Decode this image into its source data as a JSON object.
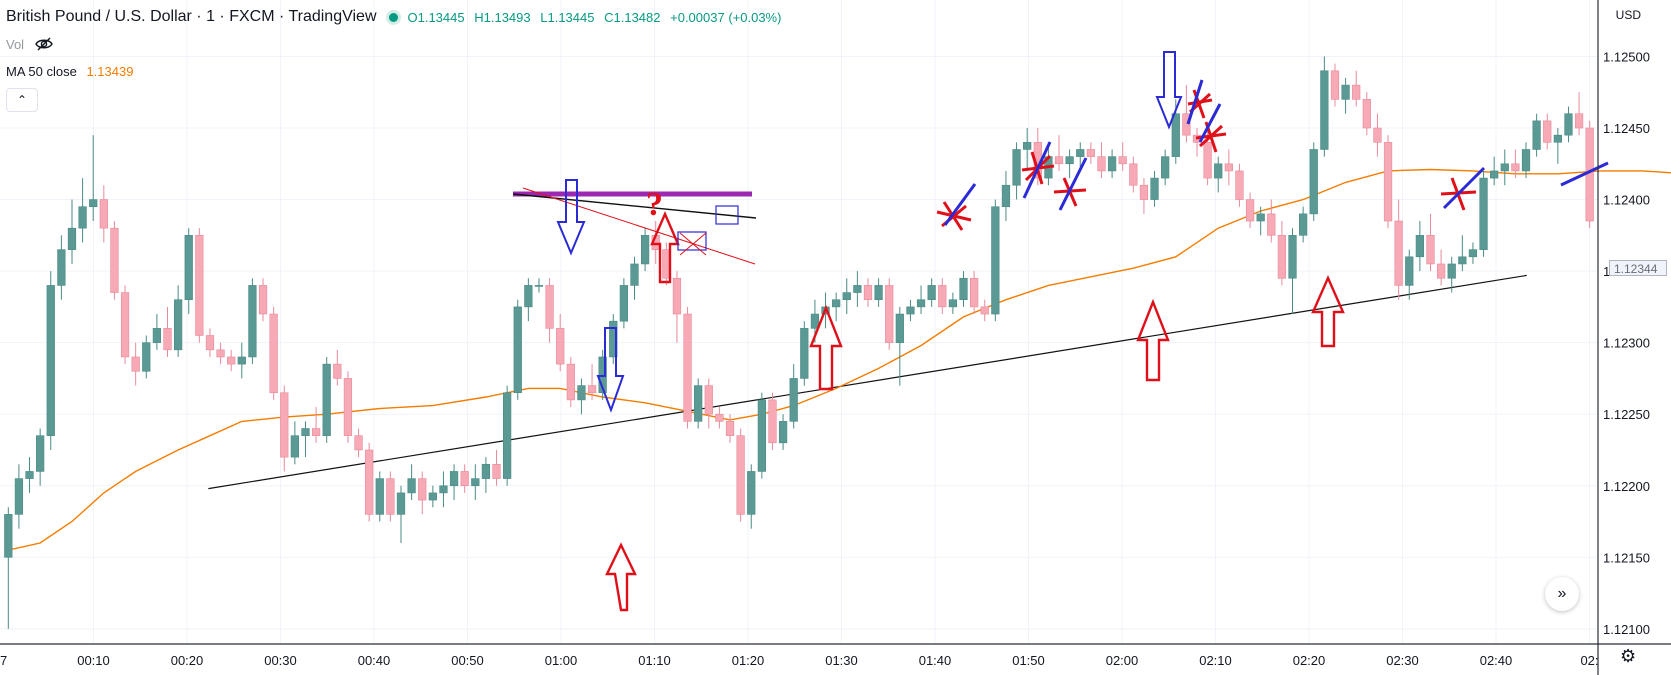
{
  "header": {
    "title": "British Pound / U.S. Dollar · 1 · FXCM · TradingView",
    "ohlc": {
      "open": "O1.13445",
      "high": "H1.13493",
      "low": "L1.13445",
      "close": "C1.13482",
      "change": "+0.00037 (+0.03%)"
    },
    "vol_label": "Vol",
    "ma_label": "MA 50 close",
    "ma_value": "1.13439",
    "collapse_icon": "chevron-up-icon"
  },
  "price_axis": {
    "currency": "USD",
    "current_price_tag": "1.12344"
  },
  "colors": {
    "up": "#5b9a94",
    "down": "#f7a9b5",
    "ma": "#f57c00",
    "drawing_red": "#e0101a",
    "drawing_blue": "#2a2ad6",
    "drawing_purple": "#9c27b0",
    "trendline": "#111111"
  },
  "chart_data": {
    "type": "candlestick",
    "y_ticks": [
      "1.12500",
      "1.12450",
      "1.12400",
      "1.12350",
      "1.12300",
      "1.12250",
      "1.12200",
      "1.12150",
      "1.12100"
    ],
    "ylim": [
      1.12095,
      1.12515
    ],
    "x_tick_labels": [
      "7",
      "00:10",
      "00:20",
      "00:30",
      "00:40",
      "00:50",
      "01:00",
      "01:10",
      "01:20",
      "01:30",
      "01:40",
      "01:50",
      "02:00",
      "02:10",
      "02:20",
      "02:30",
      "02:40",
      "02:"
    ],
    "x_tick_minutes": [
      0,
      10,
      20,
      30,
      40,
      50,
      60,
      70,
      80,
      90,
      100,
      110,
      120,
      130,
      140,
      150,
      160,
      170
    ],
    "candles": [
      [
        1.1215,
        1.12185,
        1.121,
        1.1218
      ],
      [
        1.1218,
        1.12215,
        1.1217,
        1.12205
      ],
      [
        1.12205,
        1.1222,
        1.12195,
        1.1221
      ],
      [
        1.1221,
        1.1224,
        1.122,
        1.12235
      ],
      [
        1.12235,
        1.1235,
        1.12225,
        1.1234
      ],
      [
        1.1234,
        1.12375,
        1.1233,
        1.12365
      ],
      [
        1.12365,
        1.124,
        1.12355,
        1.1238
      ],
      [
        1.1238,
        1.12415,
        1.1237,
        1.12395
      ],
      [
        1.12395,
        1.12445,
        1.12385,
        1.124
      ],
      [
        1.124,
        1.1241,
        1.1237,
        1.1238
      ],
      [
        1.1238,
        1.12385,
        1.1233,
        1.12335
      ],
      [
        1.12335,
        1.1234,
        1.12285,
        1.1229
      ],
      [
        1.1229,
        1.123,
        1.1227,
        1.1228
      ],
      [
        1.1228,
        1.12305,
        1.12275,
        1.123
      ],
      [
        1.123,
        1.1232,
        1.12295,
        1.1231
      ],
      [
        1.1231,
        1.12325,
        1.1229,
        1.12295
      ],
      [
        1.12295,
        1.1234,
        1.1229,
        1.1233
      ],
      [
        1.1233,
        1.1238,
        1.1232,
        1.12375
      ],
      [
        1.12375,
        1.1238,
        1.123,
        1.12305
      ],
      [
        1.12305,
        1.1231,
        1.1229,
        1.12295
      ],
      [
        1.12295,
        1.123,
        1.12285,
        1.1229
      ],
      [
        1.1229,
        1.12295,
        1.1228,
        1.12285
      ],
      [
        1.12285,
        1.123,
        1.12275,
        1.1229
      ],
      [
        1.1229,
        1.12345,
        1.12285,
        1.1234
      ],
      [
        1.1234,
        1.12345,
        1.12315,
        1.1232
      ],
      [
        1.1232,
        1.12325,
        1.1226,
        1.12265
      ],
      [
        1.12265,
        1.1227,
        1.1221,
        1.1222
      ],
      [
        1.1222,
        1.12245,
        1.12215,
        1.12235
      ],
      [
        1.12235,
        1.12245,
        1.1222,
        1.1224
      ],
      [
        1.1224,
        1.12255,
        1.1223,
        1.12235
      ],
      [
        1.12235,
        1.1229,
        1.1223,
        1.12285
      ],
      [
        1.12285,
        1.12295,
        1.1227,
        1.12275
      ],
      [
        1.12275,
        1.1228,
        1.1223,
        1.12235
      ],
      [
        1.12235,
        1.1224,
        1.1222,
        1.12225
      ],
      [
        1.12225,
        1.1223,
        1.12175,
        1.1218
      ],
      [
        1.1218,
        1.1221,
        1.12175,
        1.12205
      ],
      [
        1.12205,
        1.1221,
        1.12175,
        1.1218
      ],
      [
        1.1218,
        1.122,
        1.1216,
        1.12195
      ],
      [
        1.12195,
        1.12215,
        1.1219,
        1.12205
      ],
      [
        1.12205,
        1.1221,
        1.1218,
        1.1219
      ],
      [
        1.1219,
        1.122,
        1.12185,
        1.12195
      ],
      [
        1.12195,
        1.1221,
        1.12185,
        1.122
      ],
      [
        1.122,
        1.12215,
        1.1219,
        1.1221
      ],
      [
        1.1221,
        1.12215,
        1.12195,
        1.122
      ],
      [
        1.122,
        1.12215,
        1.1219,
        1.12205
      ],
      [
        1.12205,
        1.1222,
        1.12195,
        1.12215
      ],
      [
        1.12215,
        1.12225,
        1.122,
        1.12205
      ],
      [
        1.12205,
        1.1227,
        1.122,
        1.12265
      ],
      [
        1.12265,
        1.1233,
        1.1226,
        1.12325
      ],
      [
        1.12325,
        1.12345,
        1.12315,
        1.1234
      ],
      [
        1.1234,
        1.12345,
        1.12335,
        1.1234
      ],
      [
        1.1234,
        1.12345,
        1.123,
        1.1231
      ],
      [
        1.1231,
        1.1232,
        1.1228,
        1.12285
      ],
      [
        1.12285,
        1.1229,
        1.12255,
        1.1226
      ],
      [
        1.1226,
        1.12275,
        1.1225,
        1.1227
      ],
      [
        1.1227,
        1.12285,
        1.1226,
        1.12265
      ],
      [
        1.12265,
        1.12295,
        1.1226,
        1.1229
      ],
      [
        1.1229,
        1.1232,
        1.12285,
        1.12315
      ],
      [
        1.12315,
        1.12345,
        1.1231,
        1.1234
      ],
      [
        1.1234,
        1.1236,
        1.1233,
        1.12355
      ],
      [
        1.12355,
        1.1238,
        1.1235,
        1.12375
      ],
      [
        1.12375,
        1.12385,
        1.12355,
        1.12365
      ],
      [
        1.12365,
        1.1237,
        1.1234,
        1.12345
      ],
      [
        1.12345,
        1.1235,
        1.123,
        1.1232
      ],
      [
        1.1232,
        1.12325,
        1.1224,
        1.12245
      ],
      [
        1.12245,
        1.12275,
        1.1224,
        1.1227
      ],
      [
        1.1227,
        1.12275,
        1.1224,
        1.1225
      ],
      [
        1.1225,
        1.12255,
        1.1224,
        1.12245
      ],
      [
        1.12245,
        1.1225,
        1.1223,
        1.12235
      ],
      [
        1.12235,
        1.1224,
        1.12175,
        1.1218
      ],
      [
        1.1218,
        1.12215,
        1.1217,
        1.1221
      ],
      [
        1.1221,
        1.12265,
        1.12205,
        1.1226
      ],
      [
        1.1226,
        1.12265,
        1.12225,
        1.1223
      ],
      [
        1.1223,
        1.1225,
        1.12225,
        1.12245
      ],
      [
        1.12245,
        1.12285,
        1.1224,
        1.12275
      ],
      [
        1.12275,
        1.12315,
        1.1227,
        1.1231
      ],
      [
        1.1231,
        1.1233,
        1.123,
        1.1232
      ],
      [
        1.1232,
        1.12335,
        1.1231,
        1.12325
      ],
      [
        1.12325,
        1.12335,
        1.12315,
        1.1233
      ],
      [
        1.1233,
        1.12345,
        1.1232,
        1.12335
      ],
      [
        1.12335,
        1.1235,
        1.12325,
        1.1234
      ],
      [
        1.1234,
        1.12345,
        1.12325,
        1.1233
      ],
      [
        1.1233,
        1.12345,
        1.12325,
        1.1234
      ],
      [
        1.1234,
        1.12345,
        1.12295,
        1.123
      ],
      [
        1.123,
        1.12325,
        1.1227,
        1.1232
      ],
      [
        1.1232,
        1.1233,
        1.12315,
        1.12325
      ],
      [
        1.12325,
        1.1234,
        1.1232,
        1.1233
      ],
      [
        1.1233,
        1.12345,
        1.12325,
        1.1234
      ],
      [
        1.1234,
        1.12345,
        1.1232,
        1.12325
      ],
      [
        1.12325,
        1.12335,
        1.1232,
        1.1233
      ],
      [
        1.1233,
        1.1235,
        1.12325,
        1.12345
      ],
      [
        1.12345,
        1.1235,
        1.1232,
        1.12325
      ],
      [
        1.12325,
        1.1233,
        1.12315,
        1.1232
      ],
      [
        1.1232,
        1.124,
        1.12315,
        1.12395
      ],
      [
        1.12395,
        1.1242,
        1.12385,
        1.1241
      ],
      [
        1.1241,
        1.1244,
        1.124,
        1.12435
      ],
      [
        1.12435,
        1.1245,
        1.1242,
        1.1244
      ],
      [
        1.1244,
        1.1245,
        1.1241,
        1.12415
      ],
      [
        1.12415,
        1.1244,
        1.1241,
        1.1243
      ],
      [
        1.1243,
        1.12445,
        1.1242,
        1.12425
      ],
      [
        1.12425,
        1.12435,
        1.12415,
        1.1243
      ],
      [
        1.1243,
        1.1244,
        1.1242,
        1.12435
      ],
      [
        1.12435,
        1.1244,
        1.12425,
        1.1243
      ],
      [
        1.1243,
        1.1244,
        1.12415,
        1.1242
      ],
      [
        1.1242,
        1.12435,
        1.12415,
        1.1243
      ],
      [
        1.1243,
        1.1244,
        1.1242,
        1.12425
      ],
      [
        1.12425,
        1.1243,
        1.12405,
        1.1241
      ],
      [
        1.1241,
        1.12415,
        1.1239,
        1.124
      ],
      [
        1.124,
        1.1242,
        1.12395,
        1.12415
      ],
      [
        1.12415,
        1.12435,
        1.1241,
        1.1243
      ],
      [
        1.1243,
        1.1247,
        1.12425,
        1.1246
      ],
      [
        1.1246,
        1.1248,
        1.1244,
        1.12445
      ],
      [
        1.12445,
        1.1245,
        1.1243,
        1.1244
      ],
      [
        1.1244,
        1.1245,
        1.1241,
        1.12415
      ],
      [
        1.12415,
        1.1243,
        1.12405,
        1.12425
      ],
      [
        1.12425,
        1.12435,
        1.1241,
        1.1242
      ],
      [
        1.1242,
        1.12425,
        1.12395,
        1.124
      ],
      [
        1.124,
        1.12405,
        1.1238,
        1.12385
      ],
      [
        1.12385,
        1.12395,
        1.12375,
        1.1239
      ],
      [
        1.1239,
        1.124,
        1.1237,
        1.12375
      ],
      [
        1.12375,
        1.12385,
        1.1234,
        1.12345
      ],
      [
        1.12345,
        1.1238,
        1.1232,
        1.12375
      ],
      [
        1.12375,
        1.12395,
        1.1237,
        1.1239
      ],
      [
        1.1239,
        1.1244,
        1.12385,
        1.12435
      ],
      [
        1.12435,
        1.125,
        1.1243,
        1.1249
      ],
      [
        1.1249,
        1.12495,
        1.12465,
        1.1247
      ],
      [
        1.1247,
        1.12485,
        1.1246,
        1.1248
      ],
      [
        1.1248,
        1.1249,
        1.12465,
        1.1247
      ],
      [
        1.1247,
        1.12475,
        1.12445,
        1.1245
      ],
      [
        1.1245,
        1.1246,
        1.1243,
        1.1244
      ],
      [
        1.1244,
        1.12445,
        1.1238,
        1.12385
      ],
      [
        1.12385,
        1.124,
        1.1233,
        1.1234
      ],
      [
        1.1234,
        1.12365,
        1.1233,
        1.1236
      ],
      [
        1.1236,
        1.12385,
        1.1235,
        1.12375
      ],
      [
        1.12375,
        1.1239,
        1.1235,
        1.12355
      ],
      [
        1.12355,
        1.12365,
        1.1234,
        1.12345
      ],
      [
        1.12345,
        1.1236,
        1.12335,
        1.12355
      ],
      [
        1.12355,
        1.12375,
        1.1235,
        1.1236
      ],
      [
        1.1236,
        1.1237,
        1.12355,
        1.12365
      ],
      [
        1.12365,
        1.1242,
        1.1236,
        1.12415
      ],
      [
        1.12415,
        1.1243,
        1.1241,
        1.1242
      ],
      [
        1.1242,
        1.12435,
        1.1241,
        1.12425
      ],
      [
        1.12425,
        1.12435,
        1.12415,
        1.1242
      ],
      [
        1.1242,
        1.1244,
        1.12415,
        1.12435
      ],
      [
        1.12435,
        1.1246,
        1.1243,
        1.12455
      ],
      [
        1.12455,
        1.1246,
        1.12435,
        1.1244
      ],
      [
        1.1244,
        1.1245,
        1.12425,
        1.12445
      ],
      [
        1.12445,
        1.12465,
        1.1244,
        1.1246
      ],
      [
        1.1246,
        1.12475,
        1.12445,
        1.1245
      ],
      [
        1.1245,
        1.12455,
        1.1238,
        1.12385
      ]
    ],
    "ma50": [
      [
        0,
        1.12155
      ],
      [
        3,
        1.1216
      ],
      [
        6,
        1.12175
      ],
      [
        9,
        1.12195
      ],
      [
        12,
        1.1221
      ],
      [
        16,
        1.12225
      ],
      [
        19,
        1.12235
      ],
      [
        22,
        1.12245
      ],
      [
        26,
        1.12248
      ],
      [
        30,
        1.1225
      ],
      [
        35,
        1.12254
      ],
      [
        40,
        1.12256
      ],
      [
        45,
        1.12262
      ],
      [
        49,
        1.12268
      ],
      [
        52,
        1.12268
      ],
      [
        56,
        1.12262
      ],
      [
        60,
        1.12258
      ],
      [
        64,
        1.12252
      ],
      [
        68,
        1.12246
      ],
      [
        71,
        1.1225
      ],
      [
        74,
        1.12256
      ],
      [
        78,
        1.12268
      ],
      [
        82,
        1.12282
      ],
      [
        86,
        1.12298
      ],
      [
        90,
        1.12318
      ],
      [
        94,
        1.1233
      ],
      [
        98,
        1.1234
      ],
      [
        102,
        1.12346
      ],
      [
        106,
        1.12352
      ],
      [
        110,
        1.1236
      ],
      [
        114,
        1.1238
      ],
      [
        118,
        1.12392
      ],
      [
        122,
        1.124
      ],
      [
        126,
        1.12412
      ],
      [
        130,
        1.1242
      ],
      [
        134,
        1.12421
      ],
      [
        138,
        1.1242
      ],
      [
        142,
        1.12418
      ],
      [
        146,
        1.12418
      ],
      [
        150,
        1.1242
      ],
      [
        154,
        1.1242
      ],
      [
        158,
        1.12418
      ],
      [
        162,
        1.12416
      ],
      [
        166,
        1.12413
      ],
      [
        170,
        1.12408
      ]
    ],
    "trendlines": [
      {
        "from": [
          21,
          1.12198
        ],
        "to": [
          162,
          1.12347
        ]
      }
    ]
  }
}
